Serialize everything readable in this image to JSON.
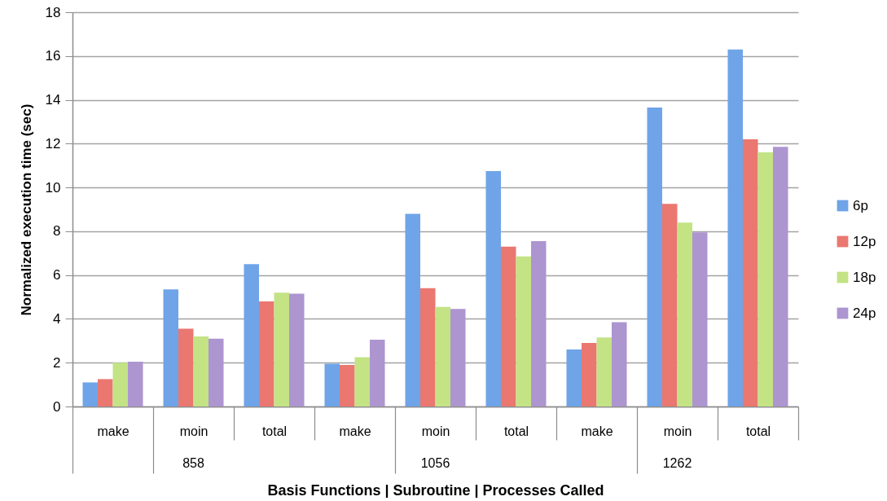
{
  "chart_data": {
    "type": "bar",
    "xlabel": "Basis Functions | Subroutine | Processes Called",
    "ylabel": "Normalized execution time (sec)",
    "categories": [
      "make",
      "moin",
      "total",
      "make",
      "moin",
      "total",
      "make",
      "moin",
      "total"
    ],
    "annotations": [
      "858",
      "1056",
      "1262"
    ],
    "series": [
      {
        "name": "6p",
        "color": "#6fa4e8",
        "values": [
          1.1,
          5.35,
          6.5,
          1.95,
          8.8,
          10.75,
          2.6,
          13.65,
          16.3
        ]
      },
      {
        "name": "12p",
        "color": "#ea7770",
        "values": [
          1.25,
          3.55,
          4.8,
          1.9,
          5.4,
          7.3,
          2.9,
          9.25,
          12.2
        ]
      },
      {
        "name": "18p",
        "color": "#c3e385",
        "values": [
          2.0,
          3.2,
          5.2,
          2.25,
          4.55,
          6.85,
          3.15,
          8.4,
          11.6
        ]
      },
      {
        "name": "24p",
        "color": "#ad95d0",
        "values": [
          2.05,
          3.1,
          5.15,
          3.05,
          4.45,
          7.55,
          3.85,
          7.95,
          11.85
        ]
      }
    ],
    "ylim": [
      0,
      18
    ],
    "yticks": [
      0,
      2,
      4,
      6,
      8,
      10,
      12,
      14,
      16,
      18
    ],
    "grid": "y",
    "legend": "right"
  }
}
